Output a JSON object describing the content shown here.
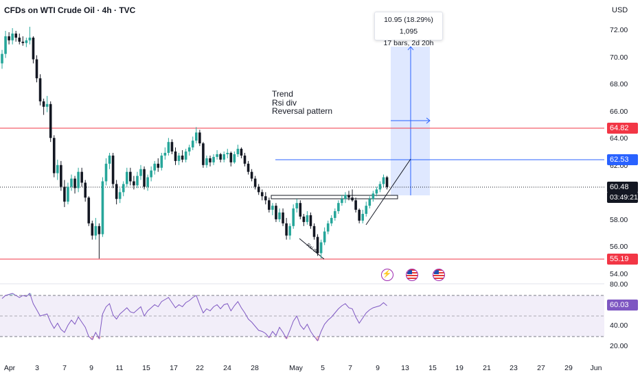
{
  "header": {
    "title": "CFDs on WTI Crude Oil · 4h · TVC",
    "currency": "USD"
  },
  "annotation_lines": [
    "Trend",
    "Rsi div",
    "Reversal pattern"
  ],
  "rsi_div_label": "Rsi div",
  "measure": {
    "line1": "10.95 (18.29%) 1,095",
    "line2": "17 bars, 2d 20h"
  },
  "price_tags": {
    "resistance": "64.82",
    "target": "62.53",
    "current": "60.48",
    "timer": "03:49:21",
    "support": "55.19"
  },
  "rsi_tag": "60.03",
  "colors": {
    "up": "#26a69a",
    "down": "#131722",
    "resistance_line": "#f23645",
    "target_line": "#2962ff",
    "rsi_line": "#7e57c2",
    "rsi_band": "#ede7f6"
  },
  "event_icons": [
    "bolt-icon",
    "us-flag-icon",
    "us-flag-icon"
  ],
  "chart_data": {
    "type": "candlestick",
    "title": "CFDs on WTI Crude Oil · 4h · TVC",
    "price_ticks": [
      "72.00",
      "70.00",
      "68.00",
      "66.00",
      "64.00",
      "62.00",
      "58.00",
      "56.00",
      "54.00"
    ],
    "price_range": [
      53.0,
      73.2
    ],
    "rsi_ticks": [
      "80.00",
      "40.00",
      "20.00"
    ],
    "rsi_range": [
      12,
      82
    ],
    "rsi_bands": [
      70,
      50,
      30
    ],
    "x_ticks": [
      "Apr",
      "3",
      "7",
      "9",
      "11",
      "15",
      "17",
      "22",
      "24",
      "28",
      "May",
      "5",
      "7",
      "9",
      "13",
      "15",
      "19",
      "21",
      "23",
      "27",
      "29",
      "Jun"
    ],
    "levels": {
      "resistance": 64.82,
      "target": 62.53,
      "current": 60.48,
      "support": 55.19
    },
    "measure": {
      "from": 59.9,
      "to": 70.85,
      "change": 10.95,
      "percent": 18.29,
      "bars": 17
    },
    "candles": [
      {
        "o": 69.6,
        "h": 70.6,
        "l": 69.2,
        "c": 70.3
      },
      {
        "o": 70.3,
        "h": 72.0,
        "l": 70.0,
        "c": 71.6
      },
      {
        "o": 71.6,
        "h": 71.9,
        "l": 71.0,
        "c": 71.3
      },
      {
        "o": 71.3,
        "h": 72.2,
        "l": 71.0,
        "c": 71.8
      },
      {
        "o": 71.8,
        "h": 72.0,
        "l": 71.2,
        "c": 71.5
      },
      {
        "o": 71.5,
        "h": 71.8,
        "l": 71.0,
        "c": 71.2
      },
      {
        "o": 71.2,
        "h": 71.6,
        "l": 70.9,
        "c": 71.1
      },
      {
        "o": 71.1,
        "h": 71.5,
        "l": 70.8,
        "c": 71.3
      },
      {
        "o": 71.3,
        "h": 72.3,
        "l": 71.0,
        "c": 71.5
      },
      {
        "o": 71.5,
        "h": 71.6,
        "l": 69.6,
        "c": 69.9
      },
      {
        "o": 69.9,
        "h": 70.2,
        "l": 68.2,
        "c": 68.5
      },
      {
        "o": 68.5,
        "h": 68.8,
        "l": 66.5,
        "c": 66.8
      },
      {
        "o": 66.8,
        "h": 67.0,
        "l": 65.8,
        "c": 66.4
      },
      {
        "o": 66.4,
        "h": 67.2,
        "l": 66.0,
        "c": 66.6
      },
      {
        "o": 66.6,
        "h": 66.8,
        "l": 63.8,
        "c": 64.1
      },
      {
        "o": 64.1,
        "h": 64.3,
        "l": 61.2,
        "c": 61.5
      },
      {
        "o": 61.5,
        "h": 62.5,
        "l": 61.0,
        "c": 62.1
      },
      {
        "o": 62.1,
        "h": 62.4,
        "l": 60.2,
        "c": 60.5
      },
      {
        "o": 60.5,
        "h": 61.0,
        "l": 59.0,
        "c": 59.4
      },
      {
        "o": 59.4,
        "h": 60.8,
        "l": 59.2,
        "c": 60.5
      },
      {
        "o": 60.5,
        "h": 61.4,
        "l": 60.2,
        "c": 61.1
      },
      {
        "o": 61.1,
        "h": 61.3,
        "l": 60.0,
        "c": 60.4
      },
      {
        "o": 60.4,
        "h": 61.9,
        "l": 60.1,
        "c": 61.6
      },
      {
        "o": 61.6,
        "h": 61.9,
        "l": 60.5,
        "c": 60.8
      },
      {
        "o": 60.8,
        "h": 61.0,
        "l": 59.4,
        "c": 59.7
      },
      {
        "o": 59.7,
        "h": 59.8,
        "l": 57.6,
        "c": 57.8
      },
      {
        "o": 57.8,
        "h": 58.0,
        "l": 56.6,
        "c": 56.9
      },
      {
        "o": 56.9,
        "h": 58.2,
        "l": 56.6,
        "c": 57.6
      },
      {
        "o": 57.6,
        "h": 57.8,
        "l": 55.2,
        "c": 57.0
      },
      {
        "o": 57.0,
        "h": 61.2,
        "l": 56.8,
        "c": 60.9
      },
      {
        "o": 60.9,
        "h": 62.6,
        "l": 60.6,
        "c": 62.2
      },
      {
        "o": 62.2,
        "h": 63.0,
        "l": 61.8,
        "c": 62.8
      },
      {
        "o": 62.8,
        "h": 63.0,
        "l": 60.4,
        "c": 60.7
      },
      {
        "o": 60.7,
        "h": 61.0,
        "l": 59.2,
        "c": 59.6
      },
      {
        "o": 59.6,
        "h": 60.4,
        "l": 59.3,
        "c": 60.1
      },
      {
        "o": 60.1,
        "h": 60.9,
        "l": 59.8,
        "c": 60.7
      },
      {
        "o": 60.7,
        "h": 61.9,
        "l": 60.5,
        "c": 61.6
      },
      {
        "o": 61.6,
        "h": 61.9,
        "l": 60.6,
        "c": 60.9
      },
      {
        "o": 60.9,
        "h": 61.3,
        "l": 60.3,
        "c": 60.6
      },
      {
        "o": 60.6,
        "h": 61.6,
        "l": 60.4,
        "c": 61.3
      },
      {
        "o": 61.3,
        "h": 62.1,
        "l": 61.0,
        "c": 61.8
      },
      {
        "o": 61.8,
        "h": 62.0,
        "l": 60.3,
        "c": 60.5
      },
      {
        "o": 60.5,
        "h": 61.4,
        "l": 60.2,
        "c": 61.2
      },
      {
        "o": 61.2,
        "h": 62.0,
        "l": 60.9,
        "c": 61.7
      },
      {
        "o": 61.7,
        "h": 62.4,
        "l": 61.4,
        "c": 62.2
      },
      {
        "o": 62.2,
        "h": 62.6,
        "l": 61.6,
        "c": 61.9
      },
      {
        "o": 61.9,
        "h": 63.0,
        "l": 61.7,
        "c": 62.8
      },
      {
        "o": 62.8,
        "h": 63.4,
        "l": 62.5,
        "c": 63.0
      },
      {
        "o": 63.0,
        "h": 64.1,
        "l": 62.8,
        "c": 63.8
      },
      {
        "o": 63.8,
        "h": 64.0,
        "l": 62.9,
        "c": 63.1
      },
      {
        "o": 63.1,
        "h": 63.4,
        "l": 62.1,
        "c": 62.4
      },
      {
        "o": 62.4,
        "h": 63.0,
        "l": 62.1,
        "c": 62.8
      },
      {
        "o": 62.8,
        "h": 63.2,
        "l": 62.3,
        "c": 62.5
      },
      {
        "o": 62.5,
        "h": 63.3,
        "l": 62.3,
        "c": 63.1
      },
      {
        "o": 63.1,
        "h": 63.6,
        "l": 62.8,
        "c": 63.4
      },
      {
        "o": 63.4,
        "h": 64.2,
        "l": 63.2,
        "c": 63.9
      },
      {
        "o": 63.9,
        "h": 64.9,
        "l": 63.7,
        "c": 64.5
      },
      {
        "o": 64.5,
        "h": 64.7,
        "l": 63.5,
        "c": 63.7
      },
      {
        "o": 63.7,
        "h": 63.8,
        "l": 61.9,
        "c": 62.1
      },
      {
        "o": 62.1,
        "h": 62.8,
        "l": 61.9,
        "c": 62.6
      },
      {
        "o": 62.6,
        "h": 62.8,
        "l": 62.0,
        "c": 62.3
      },
      {
        "o": 62.3,
        "h": 62.9,
        "l": 62.1,
        "c": 62.7
      },
      {
        "o": 62.7,
        "h": 63.2,
        "l": 62.5,
        "c": 62.9
      },
      {
        "o": 62.9,
        "h": 63.0,
        "l": 62.3,
        "c": 62.5
      },
      {
        "o": 62.5,
        "h": 63.1,
        "l": 62.3,
        "c": 62.9
      },
      {
        "o": 62.9,
        "h": 63.3,
        "l": 62.6,
        "c": 63.0
      },
      {
        "o": 63.0,
        "h": 63.1,
        "l": 62.0,
        "c": 62.3
      },
      {
        "o": 62.3,
        "h": 63.1,
        "l": 62.2,
        "c": 62.9
      },
      {
        "o": 62.9,
        "h": 63.6,
        "l": 62.7,
        "c": 63.3
      },
      {
        "o": 63.3,
        "h": 63.4,
        "l": 62.6,
        "c": 62.8
      },
      {
        "o": 62.8,
        "h": 63.0,
        "l": 62.0,
        "c": 62.2
      },
      {
        "o": 62.2,
        "h": 62.4,
        "l": 61.4,
        "c": 61.6
      },
      {
        "o": 61.6,
        "h": 61.8,
        "l": 60.9,
        "c": 61.1
      },
      {
        "o": 61.1,
        "h": 61.3,
        "l": 60.3,
        "c": 60.5
      },
      {
        "o": 60.5,
        "h": 60.7,
        "l": 59.9,
        "c": 60.1
      },
      {
        "o": 60.1,
        "h": 60.3,
        "l": 59.5,
        "c": 59.8
      },
      {
        "o": 59.8,
        "h": 60.1,
        "l": 59.2,
        "c": 59.5
      },
      {
        "o": 59.5,
        "h": 59.7,
        "l": 58.6,
        "c": 58.8
      },
      {
        "o": 58.8,
        "h": 59.3,
        "l": 58.4,
        "c": 59.1
      },
      {
        "o": 59.1,
        "h": 59.3,
        "l": 57.9,
        "c": 58.1
      },
      {
        "o": 58.1,
        "h": 58.9,
        "l": 57.9,
        "c": 58.6
      },
      {
        "o": 58.6,
        "h": 58.9,
        "l": 57.6,
        "c": 57.8
      },
      {
        "o": 57.8,
        "h": 58.2,
        "l": 56.6,
        "c": 56.9
      },
      {
        "o": 56.9,
        "h": 57.8,
        "l": 56.6,
        "c": 57.6
      },
      {
        "o": 57.6,
        "h": 59.2,
        "l": 57.4,
        "c": 58.9
      },
      {
        "o": 58.9,
        "h": 59.6,
        "l": 58.6,
        "c": 59.3
      },
      {
        "o": 59.3,
        "h": 59.5,
        "l": 58.1,
        "c": 58.3
      },
      {
        "o": 58.3,
        "h": 58.5,
        "l": 57.6,
        "c": 57.9
      },
      {
        "o": 57.9,
        "h": 58.7,
        "l": 57.7,
        "c": 58.4
      },
      {
        "o": 58.4,
        "h": 58.6,
        "l": 57.4,
        "c": 57.6
      },
      {
        "o": 57.6,
        "h": 57.8,
        "l": 56.6,
        "c": 56.8
      },
      {
        "o": 56.8,
        "h": 57.0,
        "l": 55.4,
        "c": 55.6
      },
      {
        "o": 55.6,
        "h": 56.6,
        "l": 55.2,
        "c": 56.4
      },
      {
        "o": 56.4,
        "h": 57.5,
        "l": 56.2,
        "c": 57.2
      },
      {
        "o": 57.2,
        "h": 58.0,
        "l": 57.0,
        "c": 57.8
      },
      {
        "o": 57.8,
        "h": 58.4,
        "l": 57.6,
        "c": 58.2
      },
      {
        "o": 58.2,
        "h": 58.9,
        "l": 58.0,
        "c": 58.7
      },
      {
        "o": 58.7,
        "h": 59.5,
        "l": 58.5,
        "c": 59.3
      },
      {
        "o": 59.3,
        "h": 59.9,
        "l": 59.1,
        "c": 59.6
      },
      {
        "o": 59.6,
        "h": 60.1,
        "l": 59.3,
        "c": 59.9
      },
      {
        "o": 59.9,
        "h": 60.2,
        "l": 59.5,
        "c": 59.7
      },
      {
        "o": 59.7,
        "h": 60.3,
        "l": 59.4,
        "c": 59.5
      },
      {
        "o": 59.5,
        "h": 59.7,
        "l": 58.6,
        "c": 58.8
      },
      {
        "o": 58.8,
        "h": 58.9,
        "l": 57.8,
        "c": 58.0
      },
      {
        "o": 58.0,
        "h": 58.8,
        "l": 57.8,
        "c": 58.5
      },
      {
        "o": 58.5,
        "h": 59.4,
        "l": 58.3,
        "c": 59.1
      },
      {
        "o": 59.1,
        "h": 59.8,
        "l": 58.9,
        "c": 59.6
      },
      {
        "o": 59.6,
        "h": 60.2,
        "l": 59.4,
        "c": 60.0
      },
      {
        "o": 60.0,
        "h": 60.5,
        "l": 59.8,
        "c": 60.3
      },
      {
        "o": 60.3,
        "h": 60.9,
        "l": 60.1,
        "c": 60.7
      },
      {
        "o": 60.7,
        "h": 61.4,
        "l": 60.5,
        "c": 61.2
      },
      {
        "o": 61.2,
        "h": 61.3,
        "l": 60.3,
        "c": 60.48
      }
    ],
    "rsi": [
      67,
      70,
      71,
      72,
      70,
      68,
      70,
      69,
      72,
      62,
      56,
      50,
      51,
      52,
      44,
      38,
      43,
      37,
      34,
      41,
      46,
      42,
      49,
      44,
      39,
      30,
      27,
      34,
      28,
      52,
      59,
      62,
      51,
      47,
      52,
      55,
      58,
      54,
      53,
      56,
      59,
      50,
      55,
      58,
      61,
      59,
      64,
      66,
      68,
      63,
      58,
      61,
      59,
      63,
      65,
      68,
      70,
      61,
      53,
      57,
      55,
      59,
      61,
      57,
      61,
      62,
      55,
      60,
      64,
      58,
      53,
      47,
      44,
      40,
      36,
      35,
      33,
      29,
      35,
      31,
      39,
      34,
      28,
      36,
      45,
      50,
      41,
      37,
      42,
      35,
      30,
      26,
      35,
      42,
      46,
      49,
      53,
      57,
      60,
      62,
      58,
      57,
      49,
      43,
      48,
      53,
      56,
      58,
      59,
      60,
      63,
      60
    ]
  }
}
